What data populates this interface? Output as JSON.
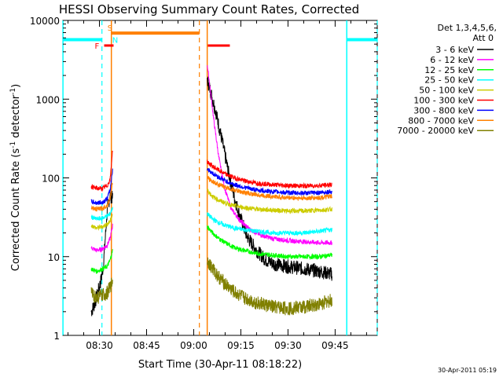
{
  "chart_data": {
    "type": "line",
    "title": "HESSI Observing Summary Count Rates, Corrected",
    "xlabel": "Start Time (30-Apr-11 08:18:22)",
    "ylabel_main": "Corrected Count Rate (s",
    "ylabel_sup1": "-1",
    "ylabel_mid": " detector",
    "ylabel_sup2": "-1",
    "ylabel_end": ")",
    "timestamp": "30-Apr-2011 05:19",
    "x_range_minutes": [
      "08:18:22",
      "09:52"
    ],
    "ylim": [
      1,
      10000
    ],
    "y_scale": "log",
    "x_ticks": [
      {
        "label": "08:30",
        "minute": 510
      },
      {
        "label": "08:45",
        "minute": 525
      },
      {
        "label": "09:00",
        "minute": 540
      },
      {
        "label": "09:15",
        "minute": 555
      },
      {
        "label": "09:30",
        "minute": 570
      },
      {
        "label": "09:45",
        "minute": 585
      }
    ],
    "y_ticks": [
      {
        "label": "1",
        "value": 1
      },
      {
        "label": "10",
        "value": 10
      },
      {
        "label": "100",
        "value": 100
      },
      {
        "label": "1000",
        "value": 1000
      },
      {
        "label": "10000",
        "value": 10000
      }
    ],
    "legend_header": [
      "Det 1,3,4,5,6,",
      "Att 0"
    ],
    "legend_placement": "right",
    "series": [
      {
        "name": "3 - 6 keV",
        "color": "#000000",
        "seg1": [
          [
            507.4,
            2
          ],
          [
            508.5,
            2.5
          ],
          [
            509.5,
            3.5
          ],
          [
            510.5,
            5
          ],
          [
            511.3,
            8
          ],
          [
            512.5,
            40
          ],
          [
            513.4,
            60
          ],
          [
            514.2,
            55
          ]
        ],
        "seg2": [
          [
            544.3,
            1800
          ],
          [
            545.5,
            1200
          ],
          [
            547,
            700
          ],
          [
            549,
            300
          ],
          [
            551,
            120
          ],
          [
            553,
            55
          ],
          [
            555,
            30
          ],
          [
            557,
            18
          ],
          [
            560,
            12
          ],
          [
            563,
            9
          ],
          [
            566,
            8
          ],
          [
            570,
            7.5
          ],
          [
            575,
            7
          ],
          [
            580,
            6.5
          ],
          [
            584,
            6
          ]
        ]
      },
      {
        "name": "6 - 12 keV",
        "color": "#ff00ff",
        "seg1": [
          [
            507.4,
            13
          ],
          [
            509,
            12
          ],
          [
            511,
            12.5
          ],
          [
            512.5,
            14
          ],
          [
            513.4,
            17
          ],
          [
            514.2,
            25
          ]
        ],
        "seg2": [
          [
            544.3,
            2800
          ],
          [
            545.3,
            1300
          ],
          [
            546.5,
            500
          ],
          [
            548,
            180
          ],
          [
            550,
            70
          ],
          [
            552,
            40
          ],
          [
            555,
            28
          ],
          [
            558,
            22
          ],
          [
            561,
            19
          ],
          [
            565,
            17
          ],
          [
            570,
            16
          ],
          [
            575,
            15.5
          ],
          [
            580,
            15
          ],
          [
            584,
            15
          ]
        ]
      },
      {
        "name": "12 - 25 keV",
        "color": "#00ff00",
        "seg1": [
          [
            507.4,
            7
          ],
          [
            509,
            6.5
          ],
          [
            511,
            7
          ],
          [
            512.5,
            7.5
          ],
          [
            513.4,
            9
          ],
          [
            514.2,
            12
          ]
        ],
        "seg2": [
          [
            544.3,
            24
          ],
          [
            546,
            20
          ],
          [
            548,
            17
          ],
          [
            550,
            15
          ],
          [
            553,
            13
          ],
          [
            556,
            12
          ],
          [
            560,
            11
          ],
          [
            565,
            10.5
          ],
          [
            570,
            10
          ],
          [
            575,
            10
          ],
          [
            580,
            10
          ],
          [
            584,
            10.5
          ]
        ]
      },
      {
        "name": "25 - 50 keV",
        "color": "#00ffff",
        "seg1": [
          [
            507.4,
            32
          ],
          [
            509,
            30
          ],
          [
            511,
            31
          ],
          [
            512.5,
            33
          ],
          [
            513.4,
            35
          ],
          [
            514.2,
            42
          ]
        ],
        "seg2": [
          [
            544.3,
            35
          ],
          [
            546,
            30
          ],
          [
            548,
            27
          ],
          [
            550,
            25
          ],
          [
            553,
            23
          ],
          [
            556,
            22
          ],
          [
            560,
            21
          ],
          [
            565,
            20
          ],
          [
            570,
            20
          ],
          [
            575,
            20
          ],
          [
            580,
            21
          ],
          [
            584,
            22
          ]
        ]
      },
      {
        "name": "50 - 100 keV",
        "color": "#cccc00",
        "seg1": [
          [
            507.4,
            25
          ],
          [
            509,
            23
          ],
          [
            511,
            24
          ],
          [
            512.5,
            26
          ],
          [
            513.4,
            28
          ],
          [
            514.2,
            35
          ]
        ],
        "seg2": [
          [
            544.3,
            70
          ],
          [
            546,
            58
          ],
          [
            548,
            52
          ],
          [
            550,
            48
          ],
          [
            553,
            44
          ],
          [
            556,
            42
          ],
          [
            560,
            40
          ],
          [
            565,
            39
          ],
          [
            570,
            38
          ],
          [
            575,
            38
          ],
          [
            580,
            39
          ],
          [
            584,
            40
          ]
        ]
      },
      {
        "name": "100 - 300 keV",
        "color": "#ff0000",
        "seg1": [
          [
            507.4,
            78
          ],
          [
            509,
            74
          ],
          [
            511,
            73
          ],
          [
            512.5,
            80
          ],
          [
            513.4,
            95
          ],
          [
            514.2,
            230
          ]
        ],
        "seg2": [
          [
            544.3,
            160
          ],
          [
            546,
            140
          ],
          [
            548,
            125
          ],
          [
            550,
            112
          ],
          [
            553,
            100
          ],
          [
            556,
            92
          ],
          [
            560,
            86
          ],
          [
            565,
            82
          ],
          [
            570,
            80
          ],
          [
            575,
            79
          ],
          [
            580,
            80
          ],
          [
            584,
            82
          ]
        ]
      },
      {
        "name": "300 - 800 keV",
        "color": "#0000ff",
        "seg1": [
          [
            507.4,
            50
          ],
          [
            509,
            48
          ],
          [
            511,
            49
          ],
          [
            512.5,
            55
          ],
          [
            513.4,
            70
          ],
          [
            514.2,
            130
          ]
        ],
        "seg2": [
          [
            544.3,
            130
          ],
          [
            546,
            115
          ],
          [
            548,
            102
          ],
          [
            550,
            92
          ],
          [
            553,
            82
          ],
          [
            556,
            76
          ],
          [
            560,
            70
          ],
          [
            565,
            67
          ],
          [
            570,
            65
          ],
          [
            575,
            64
          ],
          [
            580,
            65
          ],
          [
            584,
            67
          ]
        ]
      },
      {
        "name": "800 - 7000 keV",
        "color": "#ff8000",
        "seg1": [
          [
            507.4,
            42
          ],
          [
            509,
            40
          ],
          [
            511,
            41
          ],
          [
            512.5,
            45
          ],
          [
            513.4,
            55
          ],
          [
            514.2,
            90
          ]
        ],
        "seg2": [
          [
            544.3,
            100
          ],
          [
            546,
            90
          ],
          [
            548,
            82
          ],
          [
            550,
            76
          ],
          [
            553,
            70
          ],
          [
            556,
            65
          ],
          [
            560,
            61
          ],
          [
            565,
            58
          ],
          [
            570,
            56
          ],
          [
            575,
            55
          ],
          [
            580,
            56
          ],
          [
            584,
            58
          ]
        ]
      },
      {
        "name": "7000 - 20000 keV",
        "color": "#808000",
        "seg1": [
          [
            507.4,
            3.5
          ],
          [
            509,
            3
          ],
          [
            511,
            3.2
          ],
          [
            512.5,
            3.5
          ],
          [
            513.4,
            4
          ],
          [
            514.2,
            5
          ]
        ],
        "seg2": [
          [
            544.3,
            9
          ],
          [
            546,
            7
          ],
          [
            548,
            5.5
          ],
          [
            550,
            4.5
          ],
          [
            553,
            3.5
          ],
          [
            556,
            3
          ],
          [
            560,
            2.6
          ],
          [
            565,
            2.3
          ],
          [
            570,
            2.2
          ],
          [
            575,
            2.3
          ],
          [
            580,
            2.5
          ],
          [
            584,
            2.8
          ]
        ]
      }
    ],
    "annotations": {
      "F_label": "F",
      "S_label": "S",
      "N_label": "N",
      "flare_bars": [
        [
          511.5,
          514.5
        ],
        [
          544.5,
          551.5
        ]
      ],
      "saa_bar": [
        513.8,
        541.8
      ],
      "night_bars_left": [
        498.4,
        510.8
      ],
      "night_bars_right": [
        588.7,
        598.4
      ],
      "dashed_cyan": [
        510.8,
        598.4
      ],
      "solid_cyan": [
        498.4,
        588.7
      ],
      "dashed_orange": [
        541.8
      ],
      "solid_orange": [
        513.8,
        544.3
      ]
    }
  }
}
